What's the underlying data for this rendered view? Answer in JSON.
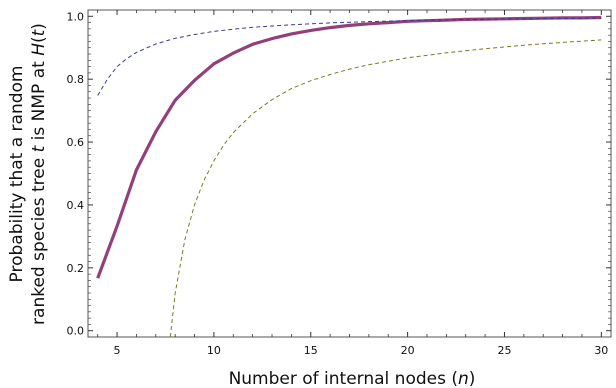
{
  "chart_data": {
    "type": "line",
    "title": "",
    "xlabel": {
      "parts": [
        "Number of internal nodes (",
        "n",
        ")"
      ]
    },
    "ylabel": {
      "line1": "Probability that a random",
      "line2_parts": [
        "ranked species tree ",
        "t",
        " is NMP at ",
        "H",
        "(",
        "t",
        ")"
      ]
    },
    "xlim": [
      3.5,
      30.5
    ],
    "ylim": [
      -0.02,
      1.02
    ],
    "xticks": [
      5,
      10,
      15,
      20,
      25,
      30
    ],
    "yticks": [
      0.0,
      0.2,
      0.4,
      0.6,
      0.8,
      1.0
    ],
    "ytick_labels": [
      "0.0",
      "0.2",
      "0.4",
      "0.6",
      "0.8",
      "1.0"
    ],
    "grid": false,
    "series": [
      {
        "style": "solid",
        "color": "#93407a",
        "x": [
          4,
          5,
          6,
          7,
          8,
          9,
          10,
          11,
          12,
          13,
          14,
          15,
          16,
          17,
          18,
          19,
          20,
          21,
          22,
          23,
          24,
          25,
          26,
          27,
          28,
          29,
          30
        ],
        "values": [
          0.167,
          0.333,
          0.511,
          0.633,
          0.733,
          0.796,
          0.849,
          0.883,
          0.911,
          0.929,
          0.944,
          0.955,
          0.964,
          0.971,
          0.976,
          0.98,
          0.984,
          0.986,
          0.988,
          0.99,
          0.991,
          0.992,
          0.993,
          0.994,
          0.995,
          0.995,
          0.996
        ]
      },
      {
        "style": "dashed",
        "color": "#3a3a9e",
        "x": [
          4,
          4.5,
          5,
          5.5,
          6,
          7,
          8,
          9,
          10,
          11,
          12,
          13,
          14,
          15,
          16,
          18,
          20,
          22,
          24,
          26,
          28,
          30
        ],
        "values": [
          0.748,
          0.8,
          0.84,
          0.865,
          0.885,
          0.912,
          0.93,
          0.942,
          0.952,
          0.959,
          0.965,
          0.969,
          0.973,
          0.976,
          0.979,
          0.983,
          0.986,
          0.989,
          0.99,
          0.992,
          0.993,
          0.994
        ]
      },
      {
        "style": "dashed",
        "color": "#7b7a1e",
        "x": [
          7.75,
          8,
          8.5,
          9,
          9.5,
          10,
          10.5,
          11,
          12,
          13,
          14,
          15,
          16,
          17,
          18,
          20,
          22,
          24,
          26,
          28,
          30
        ],
        "values": [
          -0.02,
          0.12,
          0.29,
          0.4,
          0.48,
          0.54,
          0.59,
          0.63,
          0.69,
          0.735,
          0.77,
          0.795,
          0.815,
          0.832,
          0.846,
          0.868,
          0.884,
          0.897,
          0.908,
          0.917,
          0.925
        ]
      }
    ]
  }
}
